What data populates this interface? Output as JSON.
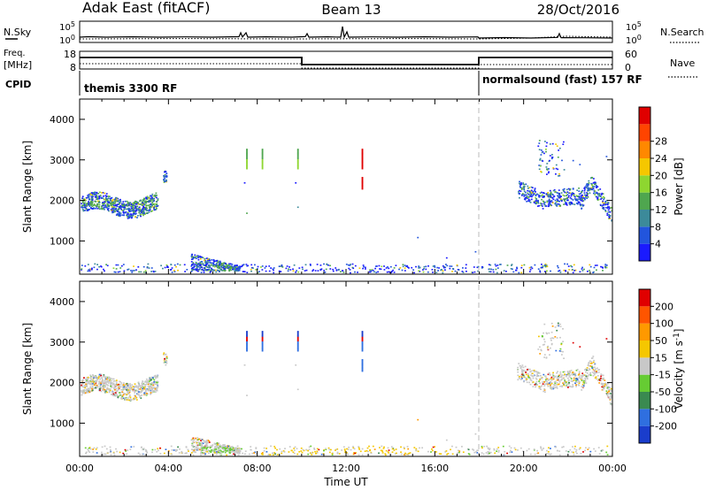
{
  "header": {
    "station": "Adak East (fitACF)",
    "beam": "Beam 13",
    "date": "28/Oct/2016"
  },
  "top_panels": {
    "nsky_label": "N.Sky",
    "nsearch_label": "N.Search",
    "noise_ticks_left": [
      "10^5",
      "10^0"
    ],
    "noise_ticks_right": [
      "10^5",
      "10^0"
    ],
    "freq_label_line1": "Freq.",
    "freq_label_line2": "[MHz]",
    "freq_ticks": [
      "18",
      "8"
    ],
    "nave_label": "Nave",
    "nave_ticks": [
      "60",
      "0"
    ],
    "cpid_label": "CPID",
    "cpid_segments": [
      {
        "label": "themis 3300 RF",
        "start_hour": 0,
        "end_hour": 18
      },
      {
        "label": "normalsound (fast) 157 RF",
        "start_hour": 18,
        "end_hour": 24
      }
    ]
  },
  "chart_data": [
    {
      "type": "heatmap",
      "quantity": "Power",
      "ylabel": "Slant Range [km]",
      "xlim": [
        0,
        24
      ],
      "ylim": [
        180,
        4500
      ],
      "yticks": [
        1000,
        2000,
        3000,
        4000
      ],
      "colorbar_label": "Power [dB]",
      "colorbar_ticks": [
        "4",
        "8",
        "12",
        "16",
        "20",
        "24",
        "28"
      ],
      "colorbar_colors": [
        "#1a1aff",
        "#2255dd",
        "#3c8a9a",
        "#4fa64f",
        "#8ed630",
        "#f5c700",
        "#ff8800",
        "#ff4400",
        "#e00000"
      ],
      "range_limits": [
        0,
        32
      ]
    },
    {
      "type": "heatmap",
      "quantity": "Velocity",
      "ylabel": "Slant Range [km]",
      "xlim": [
        0,
        24
      ],
      "ylim": [
        180,
        4500
      ],
      "yticks": [
        1000,
        2000,
        3000,
        4000
      ],
      "colorbar_label": "Velocity [m s-1]",
      "colorbar_ticks": [
        "200",
        "100",
        "50",
        "15",
        "-15",
        "-50",
        "-100",
        "-200"
      ],
      "colorbar_colors": [
        "#1a3dcc",
        "#2f6fe0",
        "#3a8a50",
        "#66cc33",
        "#c8c8c8",
        "#f5c700",
        "#ff9900",
        "#ff5500",
        "#e00000"
      ],
      "range_limits": [
        -250,
        250
      ]
    }
  ],
  "x_axis": {
    "ticks": [
      "00:00",
      "04:00",
      "08:00",
      "12:00",
      "16:00",
      "20:00",
      "00:00"
    ],
    "label": "Time UT"
  }
}
